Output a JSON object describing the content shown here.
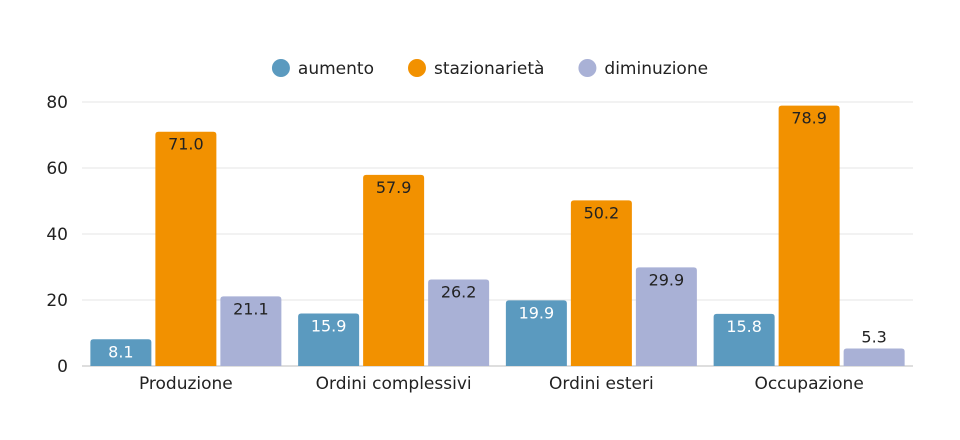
{
  "chart_data": {
    "type": "bar",
    "title": "",
    "xlabel": "",
    "ylabel": "",
    "ylim": [
      0,
      80
    ],
    "yticks": [
      0,
      20,
      40,
      60,
      80
    ],
    "grid": true,
    "legend_position": "top-center",
    "categories": [
      "Produzione",
      "Ordini complessivi",
      "Ordini esteri",
      "Occupazione"
    ],
    "series": [
      {
        "name": "aumento",
        "color": "#5b9abf",
        "label_color": "#ffffff",
        "values": [
          8.1,
          15.9,
          19.9,
          15.8
        ]
      },
      {
        "name": "stazionarietà",
        "color": "#f29100",
        "label_color": "#222222",
        "values": [
          71.0,
          57.9,
          50.2,
          78.9
        ]
      },
      {
        "name": "diminuzione",
        "color": "#a9b1d6",
        "label_color": "#222222",
        "values": [
          21.1,
          26.2,
          29.9,
          5.3
        ]
      }
    ]
  }
}
